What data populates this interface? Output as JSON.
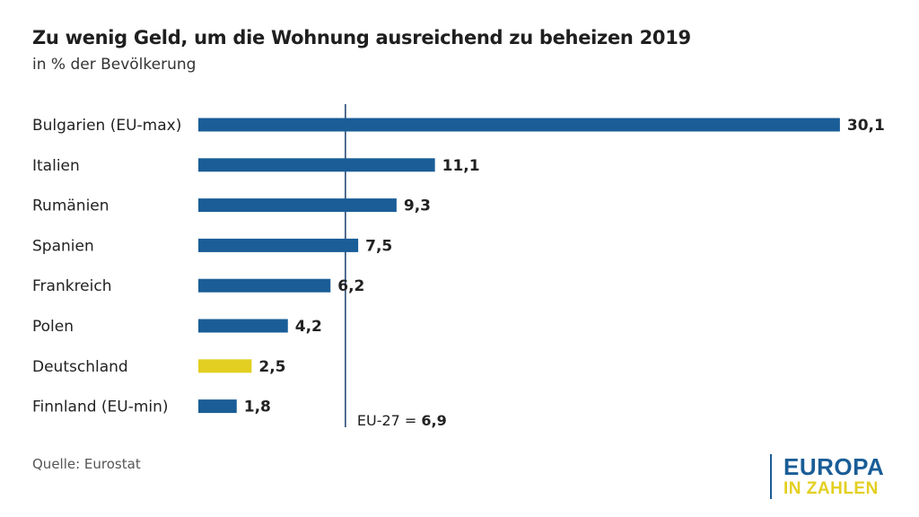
{
  "title": "Zu wenig Geld, um die Wohnung ausreichend zu beheizen 2019",
  "subtitle": "in % der Bevölkerung",
  "source": "Quelle: Eurostat",
  "logo": {
    "line1": "EUROPA",
    "line2": "IN ZAHLEN"
  },
  "colors": {
    "bar": "#1a5d97",
    "highlight": "#e3cf21",
    "reference_line": "#1a3f6b"
  },
  "chart_data": {
    "type": "bar",
    "orientation": "horizontal",
    "categories": [
      "Bulgarien (EU-max)",
      "Italien",
      "Rumänien",
      "Spanien",
      "Frankreich",
      "Polen",
      "Deutschland",
      "Finnland (EU-min)"
    ],
    "values": [
      30.1,
      11.1,
      9.3,
      7.5,
      6.2,
      4.2,
      2.5,
      1.8
    ],
    "value_labels": [
      "30,1",
      "11,1",
      "9,3",
      "7,5",
      "6,2",
      "4,2",
      "2,5",
      "1,8"
    ],
    "highlight_category": "Deutschland",
    "reference_line": {
      "label": "EU-27 = ",
      "value": 6.9,
      "value_label": "6,9"
    },
    "title": "Zu wenig Geld, um die Wohnung ausreichend zu beheizen 2019",
    "subtitle": "in % der Bevölkerung",
    "xlabel": "",
    "ylabel": "",
    "grid": false,
    "legend": "none"
  }
}
